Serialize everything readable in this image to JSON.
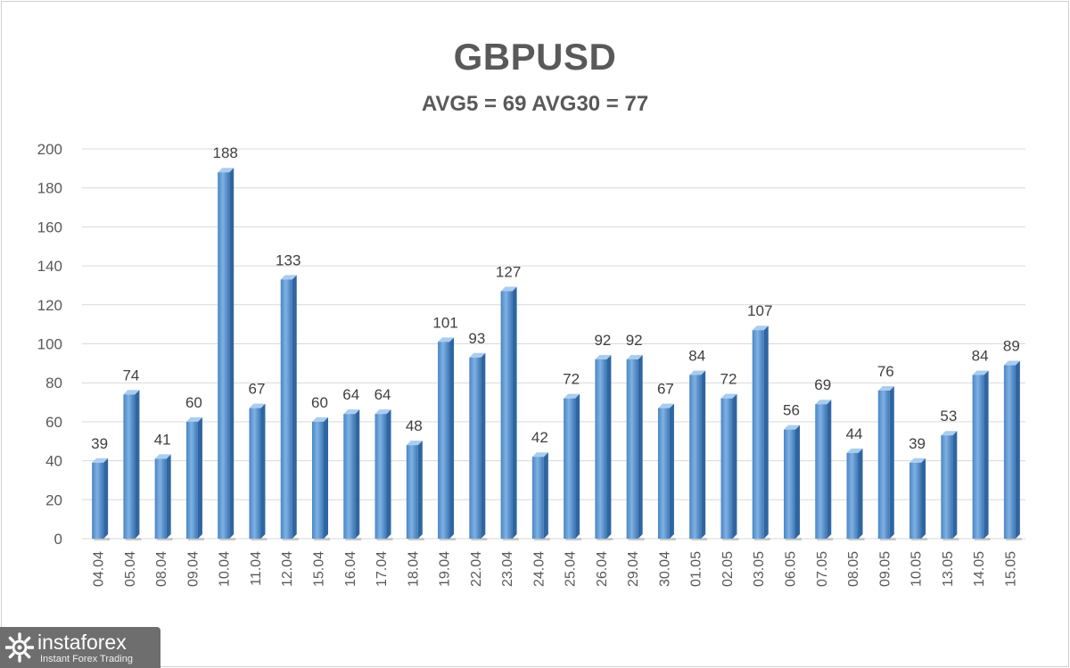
{
  "chart_data": {
    "type": "bar",
    "title": "GBPUSD",
    "subtitle": "AVG5 = 69 AVG30 = 77",
    "categories": [
      "04.04",
      "05.04",
      "08.04",
      "09.04",
      "10.04",
      "11.04",
      "12.04",
      "15.04",
      "16.04",
      "17.04",
      "18.04",
      "19.04",
      "22.04",
      "23.04",
      "24.04",
      "25.04",
      "26.04",
      "29.04",
      "30.04",
      "01.05",
      "02.05",
      "03.05",
      "06.05",
      "07.05",
      "08.05",
      "09.05",
      "10.05",
      "13.05",
      "14.05",
      "15.05"
    ],
    "values": [
      39,
      74,
      41,
      60,
      188,
      67,
      133,
      60,
      64,
      64,
      48,
      101,
      93,
      127,
      42,
      72,
      92,
      92,
      67,
      84,
      72,
      107,
      56,
      69,
      44,
      76,
      39,
      53,
      84,
      89
    ],
    "ylim": [
      0,
      200
    ],
    "yticks": [
      0,
      20,
      40,
      60,
      80,
      100,
      120,
      140,
      160,
      180,
      200
    ],
    "xlabel": "",
    "ylabel": "",
    "grid": true,
    "legend": "none",
    "bar_color": "#5b9bd5"
  },
  "watermark": {
    "name": "instaforex",
    "tagline": "Instant Forex Trading"
  }
}
